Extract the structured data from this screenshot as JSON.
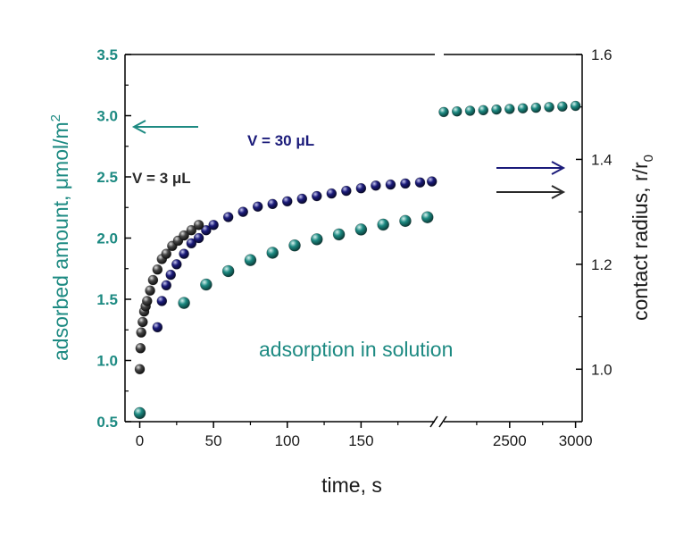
{
  "chart_data": {
    "type": "scatter",
    "title": "",
    "xlabel": "time, s",
    "ylabel_left": "adsorbed amount, μmol/m",
    "ylabel_left_sup": "2",
    "ylabel_right": "contact radius, r/r",
    "ylabel_right_sub": "0",
    "x_axis_break": true,
    "x_segments": [
      {
        "range": [
          -10,
          200
        ],
        "ticks": [
          0,
          50,
          100,
          150
        ]
      },
      {
        "range": [
          2000,
          3050
        ],
        "ticks": [
          2500,
          3000
        ]
      }
    ],
    "ylim_left": [
      0.5,
      3.5
    ],
    "yticks_left": [
      "0.5",
      "1.0",
      "1.5",
      "2.0",
      "2.5",
      "3.0",
      "3.5"
    ],
    "ylim_right": [
      0.9,
      1.6
    ],
    "yticks_right": [
      "1.0",
      "1.2",
      "1.4",
      "1.6"
    ],
    "annotations": {
      "v30": "V = 30 μL",
      "v3": "V = 3 μL",
      "solution": "adsorption in solution"
    },
    "colors": {
      "teal": "#1d8a82",
      "navy": "#1b1b7a",
      "dark": "#3a3a3a",
      "axis": "#000000"
    },
    "series": [
      {
        "name": "adsorption in solution",
        "axis": "left",
        "color": "#1d8a82",
        "x": [
          0,
          30,
          45,
          60,
          75,
          90,
          105,
          120,
          135,
          150,
          165,
          180,
          195
        ],
        "y": [
          0.57,
          1.47,
          1.62,
          1.73,
          1.82,
          1.88,
          1.94,
          1.99,
          2.03,
          2.07,
          2.11,
          2.14,
          2.17
        ]
      },
      {
        "name": "V = 30 μL",
        "axis": "right",
        "color": "#1b1b7a",
        "x": [
          12,
          15,
          18,
          21,
          25,
          30,
          35,
          40,
          45,
          50,
          60,
          70,
          80,
          90,
          100,
          110,
          120,
          130,
          140,
          150,
          160,
          170,
          180,
          190,
          198
        ],
        "y": [
          1.08,
          1.13,
          1.16,
          1.18,
          1.2,
          1.22,
          1.24,
          1.25,
          1.265,
          1.275,
          1.29,
          1.3,
          1.31,
          1.315,
          1.32,
          1.325,
          1.33,
          1.335,
          1.34,
          1.345,
          1.35,
          1.352,
          1.354,
          1.356,
          1.358
        ]
      },
      {
        "name": "V = 3 μL",
        "axis": "right",
        "color": "#3a3a3a",
        "x": [
          0,
          0.5,
          1,
          2,
          3,
          4,
          5,
          7,
          9,
          12,
          15,
          18,
          22,
          26,
          30,
          35,
          40
        ],
        "y": [
          1.0,
          1.04,
          1.07,
          1.09,
          1.11,
          1.12,
          1.13,
          1.15,
          1.17,
          1.19,
          1.21,
          1.22,
          1.235,
          1.245,
          1.255,
          1.265,
          1.275
        ]
      },
      {
        "name": "adsorption in solution (late)",
        "axis": "left",
        "color": "#1d8a82",
        "x": [
          2000,
          2100,
          2200,
          2300,
          2400,
          2500,
          2600,
          2700,
          2800,
          2900,
          3000
        ],
        "y": [
          3.03,
          3.035,
          3.04,
          3.045,
          3.05,
          3.055,
          3.06,
          3.065,
          3.07,
          3.075,
          3.08
        ]
      }
    ]
  }
}
